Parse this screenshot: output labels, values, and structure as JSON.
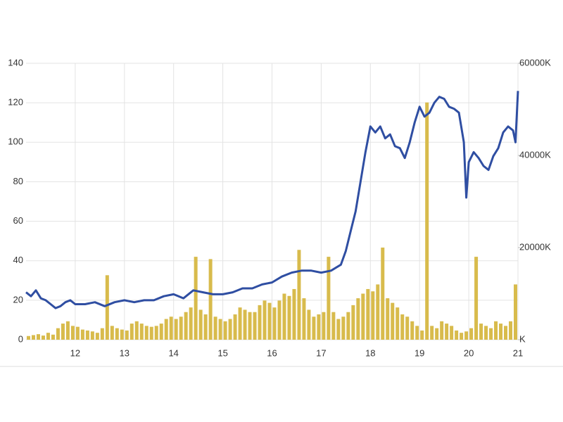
{
  "chart_data": {
    "type": "combo",
    "grid": true,
    "xlim": [
      11,
      21
    ],
    "xticks": [
      12,
      13,
      14,
      15,
      16,
      17,
      18,
      19,
      20,
      21
    ],
    "ylim": [
      0,
      140
    ],
    "yticks": [
      0,
      20,
      40,
      60,
      80,
      100,
      120,
      140
    ],
    "y2lim": [
      0,
      60000
    ],
    "y2ticks": [
      {
        "value": 0,
        "label": "K"
      },
      {
        "value": 20000,
        "label": "20000K"
      },
      {
        "value": 40000,
        "label": "40000K"
      },
      {
        "value": 60000,
        "label": "60000K"
      }
    ],
    "series": [
      {
        "type": "bar",
        "axis": "y2",
        "color": "#d8bb4c",
        "x": [
          11.05,
          11.15,
          11.25,
          11.35,
          11.45,
          11.55,
          11.65,
          11.75,
          11.85,
          11.95,
          12.05,
          12.15,
          12.25,
          12.35,
          12.45,
          12.55,
          12.65,
          12.75,
          12.85,
          12.95,
          13.05,
          13.15,
          13.25,
          13.35,
          13.45,
          13.55,
          13.65,
          13.75,
          13.85,
          13.95,
          14.05,
          14.15,
          14.25,
          14.35,
          14.45,
          14.55,
          14.65,
          14.75,
          14.85,
          14.95,
          15.05,
          15.15,
          15.25,
          15.35,
          15.45,
          15.55,
          15.65,
          15.75,
          15.85,
          15.95,
          16.05,
          16.15,
          16.25,
          16.35,
          16.45,
          16.55,
          16.65,
          16.75,
          16.85,
          16.95,
          17.05,
          17.15,
          17.25,
          17.35,
          17.45,
          17.55,
          17.65,
          17.75,
          17.85,
          17.95,
          18.05,
          18.15,
          18.25,
          18.35,
          18.45,
          18.55,
          18.65,
          18.75,
          18.85,
          18.95,
          19.05,
          19.15,
          19.25,
          19.35,
          19.45,
          19.55,
          19.65,
          19.75,
          19.85,
          19.95,
          20.05,
          20.15,
          20.25,
          20.35,
          20.45,
          20.55,
          20.65,
          20.75,
          20.85,
          20.95
        ],
        "values": [
          800,
          1000,
          1200,
          900,
          1500,
          1100,
          2500,
          3500,
          4000,
          3000,
          2800,
          2200,
          2000,
          1800,
          1500,
          2500,
          14000,
          3000,
          2500,
          2200,
          2000,
          3500,
          4000,
          3500,
          3000,
          2800,
          3000,
          3500,
          4500,
          5000,
          4500,
          5000,
          6000,
          7000,
          18000,
          6500,
          5500,
          17500,
          5000,
          4500,
          4000,
          4500,
          5500,
          7000,
          6500,
          6000,
          6000,
          7500,
          8500,
          8000,
          7000,
          8500,
          10000,
          9500,
          11000,
          19500,
          9000,
          6500,
          5000,
          5500,
          6000,
          18000,
          6000,
          4500,
          5000,
          6000,
          7500,
          9000,
          10000,
          11000,
          10500,
          12000,
          20000,
          9000,
          8000,
          7000,
          5500,
          5000,
          4000,
          3000,
          2000,
          51500,
          3000,
          2500,
          4000,
          3500,
          3000,
          2000,
          1500,
          1800,
          2500,
          18000,
          3500,
          3000,
          2500,
          4000,
          3500,
          3000,
          4000,
          12000
        ]
      },
      {
        "type": "line",
        "color": "#2f4ea2",
        "x": [
          11.0,
          11.1,
          11.2,
          11.3,
          11.4,
          11.5,
          11.6,
          11.7,
          11.8,
          11.9,
          12.0,
          12.2,
          12.4,
          12.6,
          12.8,
          13.0,
          13.2,
          13.4,
          13.6,
          13.8,
          14.0,
          14.2,
          14.4,
          14.6,
          14.8,
          15.0,
          15.2,
          15.4,
          15.6,
          15.8,
          16.0,
          16.2,
          16.4,
          16.6,
          16.8,
          17.0,
          17.2,
          17.4,
          17.5,
          17.6,
          17.7,
          17.8,
          17.9,
          18.0,
          18.1,
          18.2,
          18.3,
          18.4,
          18.5,
          18.6,
          18.7,
          18.8,
          18.9,
          19.0,
          19.1,
          19.2,
          19.3,
          19.4,
          19.5,
          19.6,
          19.7,
          19.8,
          19.9,
          19.95,
          20.0,
          20.1,
          20.2,
          20.3,
          20.4,
          20.5,
          20.6,
          20.7,
          20.8,
          20.9,
          20.95,
          21.0
        ],
        "values": [
          24,
          22,
          25,
          21,
          20,
          18,
          16,
          17,
          19,
          20,
          18,
          18,
          19,
          17,
          19,
          20,
          19,
          20,
          20,
          22,
          23,
          21,
          25,
          24,
          23,
          23,
          24,
          26,
          26,
          28,
          29,
          32,
          34,
          35,
          35,
          34,
          35,
          38,
          45,
          55,
          65,
          80,
          95,
          108,
          105,
          108,
          102,
          104,
          98,
          97,
          92,
          100,
          110,
          118,
          113,
          115,
          120,
          123,
          122,
          118,
          117,
          115,
          100,
          72,
          90,
          95,
          92,
          88,
          86,
          93,
          97,
          105,
          108,
          106,
          100,
          126
        ]
      }
    ]
  }
}
